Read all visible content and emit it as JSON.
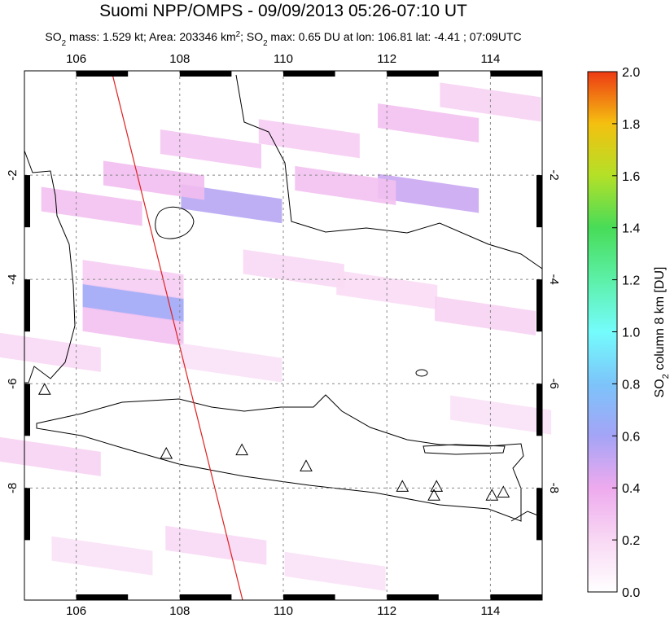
{
  "title": "Suomi NPP/OMPS - 09/09/2013 05:26-07:10 UT",
  "subtitle": [
    "SO",
    "2",
    " mass: 1.529 kt; Area: 203346 km",
    "2",
    "; SO",
    "2",
    " max: 0.65 DU at lon: 106.81 lat: -4.41 ; 07:09UTC"
  ],
  "map": {
    "xlim": [
      105,
      115
    ],
    "ylim": [
      -10.15,
      0
    ],
    "xticks": [
      106,
      108,
      110,
      112,
      114
    ],
    "yticks": [
      -2,
      -4,
      -6,
      -8
    ],
    "so2_pixels": [
      {
        "lon": 107.1,
        "lat": -4.45,
        "value": 0.62
      },
      {
        "lon": 109.0,
        "lat": -2.55,
        "value": 0.55
      },
      {
        "lon": 112.8,
        "lat": -2.35,
        "value": 0.5
      },
      {
        "lon": 111.2,
        "lat": -2.2,
        "value": 0.3
      },
      {
        "lon": 107.5,
        "lat": -2.1,
        "value": 0.32
      },
      {
        "lon": 106.3,
        "lat": -2.6,
        "value": 0.3
      },
      {
        "lon": 107.1,
        "lat": -4.9,
        "value": 0.3
      },
      {
        "lon": 107.1,
        "lat": -4.0,
        "value": 0.25
      },
      {
        "lon": 108.6,
        "lat": -1.5,
        "value": 0.28
      },
      {
        "lon": 110.5,
        "lat": -1.3,
        "value": 0.25
      },
      {
        "lon": 112.8,
        "lat": -1.0,
        "value": 0.3
      },
      {
        "lon": 114.0,
        "lat": -0.6,
        "value": 0.22
      },
      {
        "lon": 110.2,
        "lat": -3.8,
        "value": 0.2
      },
      {
        "lon": 112.0,
        "lat": -4.2,
        "value": 0.18
      },
      {
        "lon": 113.9,
        "lat": -4.7,
        "value": 0.22
      },
      {
        "lon": 109.0,
        "lat": -5.6,
        "value": 0.15
      },
      {
        "lon": 105.5,
        "lat": -5.4,
        "value": 0.2
      },
      {
        "lon": 105.5,
        "lat": -7.4,
        "value": 0.22
      },
      {
        "lon": 106.5,
        "lat": -9.3,
        "value": 0.15
      },
      {
        "lon": 108.7,
        "lat": -9.1,
        "value": 0.2
      },
      {
        "lon": 111.0,
        "lat": -9.6,
        "value": 0.15
      },
      {
        "lon": 114.2,
        "lat": -6.6,
        "value": 0.15
      }
    ],
    "volcanoes": [
      [
        105.39,
        -6.11
      ],
      [
        107.74,
        -7.34
      ],
      [
        109.2,
        -7.27
      ],
      [
        110.44,
        -7.58
      ],
      [
        112.3,
        -7.97
      ],
      [
        112.96,
        -7.97
      ],
      [
        112.91,
        -8.14
      ],
      [
        114.03,
        -8.14
      ],
      [
        114.25,
        -8.08
      ]
    ]
  },
  "colorbar": {
    "label": [
      "SO",
      "2",
      " column 8 km [DU]"
    ],
    "lim": [
      0,
      2
    ],
    "colors": [
      "#ffffff",
      "#f8d8f4",
      "#eeaaee",
      "#a4a4f6",
      "#7cc4fa",
      "#74fcfc",
      "#5cf0a8",
      "#48dc58",
      "#b4e028",
      "#f4c010",
      "#ee3a14"
    ],
    "ticks": [
      {
        "value": 0,
        "label": "0.0"
      },
      0.2,
      0.4,
      0.6,
      0.8,
      {
        "value": 1,
        "label": "1.0"
      },
      1.2,
      1.4,
      1.6,
      1.8,
      {
        "value": 2,
        "label": "2.0"
      }
    ]
  }
}
